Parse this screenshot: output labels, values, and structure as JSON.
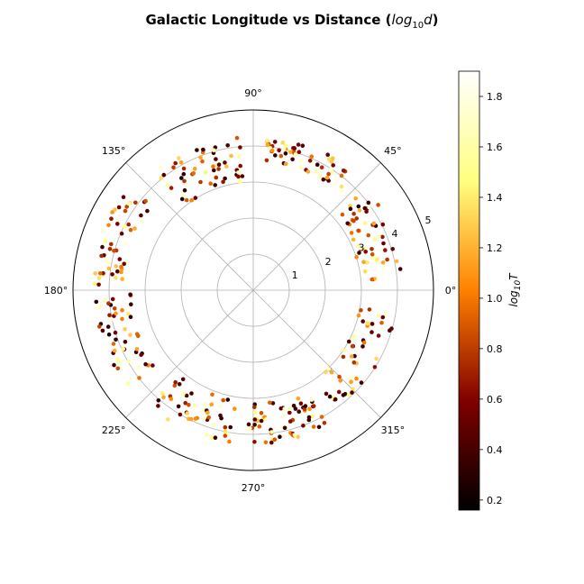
{
  "chart_data": {
    "type": "scatter",
    "projection": "polar",
    "title": "Galactic Longitude vs Distance",
    "title_math": "log",
    "title_math_sub": "10",
    "title_math_var": "d",
    "angular_tick_labels": [
      "0°",
      "45°",
      "90°",
      "135°",
      "180°",
      "225°",
      "270°",
      "315°"
    ],
    "radial_tick_labels": [
      "1",
      "2",
      "3",
      "4",
      "5"
    ],
    "rlim": [
      0,
      5
    ],
    "grid": true,
    "colorbar": {
      "label_base": "log",
      "label_sub": "10",
      "label_var": "T",
      "colormap": "afmhot",
      "range": [
        0.16,
        1.9
      ],
      "tick_labels": [
        "0.2",
        "0.4",
        "0.6",
        "0.8",
        "1.0",
        "1.2",
        "1.4",
        "1.6",
        "1.8"
      ]
    },
    "point_clusters": [
      {
        "theta_range_deg": [
          5,
          42
        ],
        "r_range": [
          3.0,
          4.2
        ],
        "count": 55
      },
      {
        "theta_range_deg": [
          48,
          85
        ],
        "r_range": [
          3.6,
          4.3
        ],
        "count": 60
      },
      {
        "theta_range_deg": [
          95,
          130
        ],
        "r_range": [
          3.0,
          4.3
        ],
        "count": 60
      },
      {
        "theta_range_deg": [
          140,
          178
        ],
        "r_range": [
          3.6,
          4.5
        ],
        "count": 55
      },
      {
        "theta_range_deg": [
          182,
          220
        ],
        "r_range": [
          3.4,
          4.5
        ],
        "count": 50
      },
      {
        "theta_range_deg": [
          228,
          262
        ],
        "r_range": [
          3.1,
          4.3
        ],
        "count": 50
      },
      {
        "theta_range_deg": [
          268,
          300
        ],
        "r_range": [
          3.1,
          4.3
        ],
        "count": 65
      },
      {
        "theta_range_deg": [
          305,
          352
        ],
        "r_range": [
          3.0,
          4.0
        ],
        "count": 55
      }
    ]
  }
}
